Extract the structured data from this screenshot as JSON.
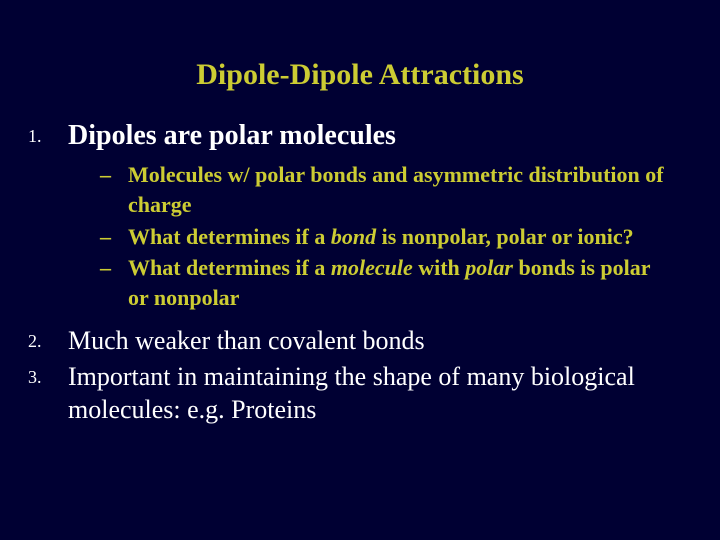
{
  "colors": {
    "background": "#000033",
    "title": "#cccc33",
    "body_text": "#ffffff",
    "sub_text": "#cccc33"
  },
  "typography": {
    "title_fontsize": 30,
    "main_point_fontsize": 28,
    "normal_point_fontsize": 26,
    "sub_point_fontsize": 22,
    "number_fontsize": 18,
    "font_family": "Times New Roman"
  },
  "title": "Dipole-Dipole Attractions",
  "items": {
    "item1": {
      "number": "1.",
      "text": "Dipoles are polar molecules",
      "sub": {
        "s1": {
          "dash": "–",
          "text": "Molecules w/ polar bonds and asymmetric distribution of charge"
        },
        "s2": {
          "dash": "–",
          "prefix": "What determines if a ",
          "em": "bond",
          "suffix": "  is nonpolar, polar or ionic?"
        },
        "s3": {
          "dash": "–",
          "prefix": "What determines if a ",
          "em1": "molecule",
          "mid": "  with ",
          "em2": "polar",
          "suffix": "  bonds is polar or nonpolar"
        }
      }
    },
    "item2": {
      "number": "2.",
      "text": "Much weaker than covalent bonds"
    },
    "item3": {
      "number": "3.",
      "text": "Important in maintaining the shape of many biological molecules:   e.g. Proteins"
    }
  }
}
